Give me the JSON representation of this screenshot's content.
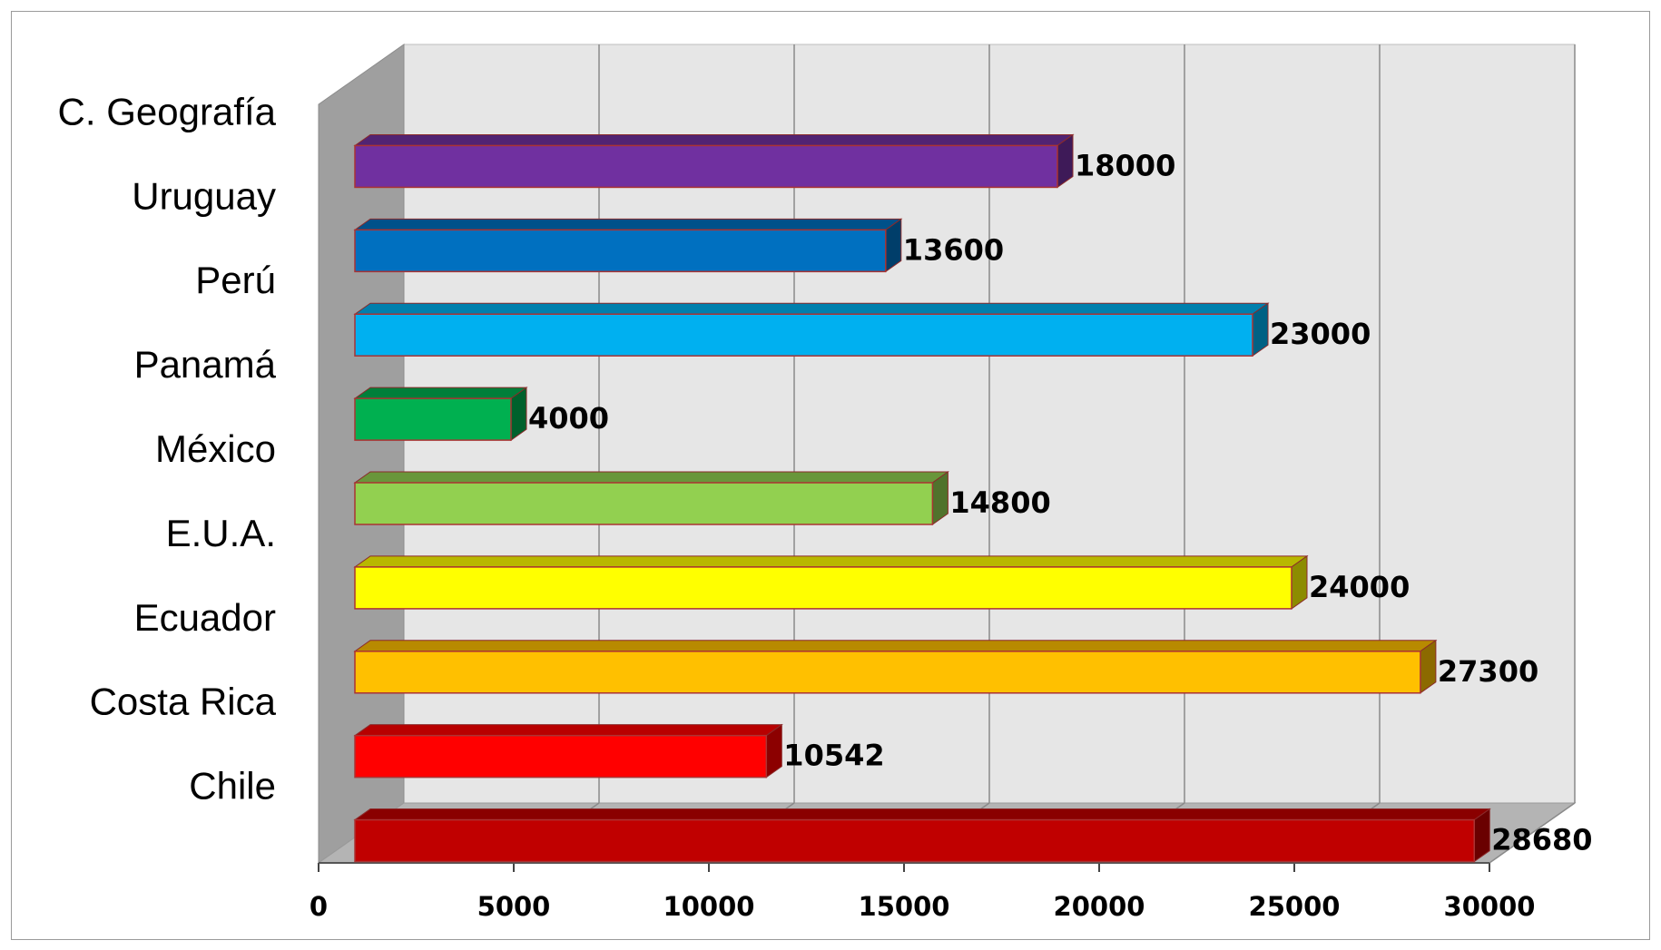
{
  "chart_data": {
    "type": "bar",
    "orientation": "horizontal",
    "three_d": true,
    "categories": [
      "Chile",
      "Costa Rica",
      "Ecuador",
      "E.U.A.",
      "México",
      "Panamá",
      "Perú",
      "Uruguay",
      "C. Geografía"
    ],
    "values": [
      28680,
      10542,
      27300,
      24000,
      14800,
      4000,
      23000,
      13600,
      18000
    ],
    "data_labels": [
      "28680",
      "10542",
      "27300",
      "24000",
      "14800",
      "4000",
      "23000",
      "13600",
      "18000"
    ],
    "colors": [
      "#C00000",
      "#FF0000",
      "#FFC000",
      "#FFFF00",
      "#92D050",
      "#00B050",
      "#00B0F0",
      "#0070C0",
      "#7030A0"
    ],
    "x_ticks": [
      "0",
      "5000",
      "10000",
      "15000",
      "20000",
      "25000",
      "30000"
    ],
    "xlim": [
      0,
      30000
    ],
    "grid": true,
    "legend": "none",
    "title": "",
    "xlabel": "",
    "ylabel": ""
  }
}
